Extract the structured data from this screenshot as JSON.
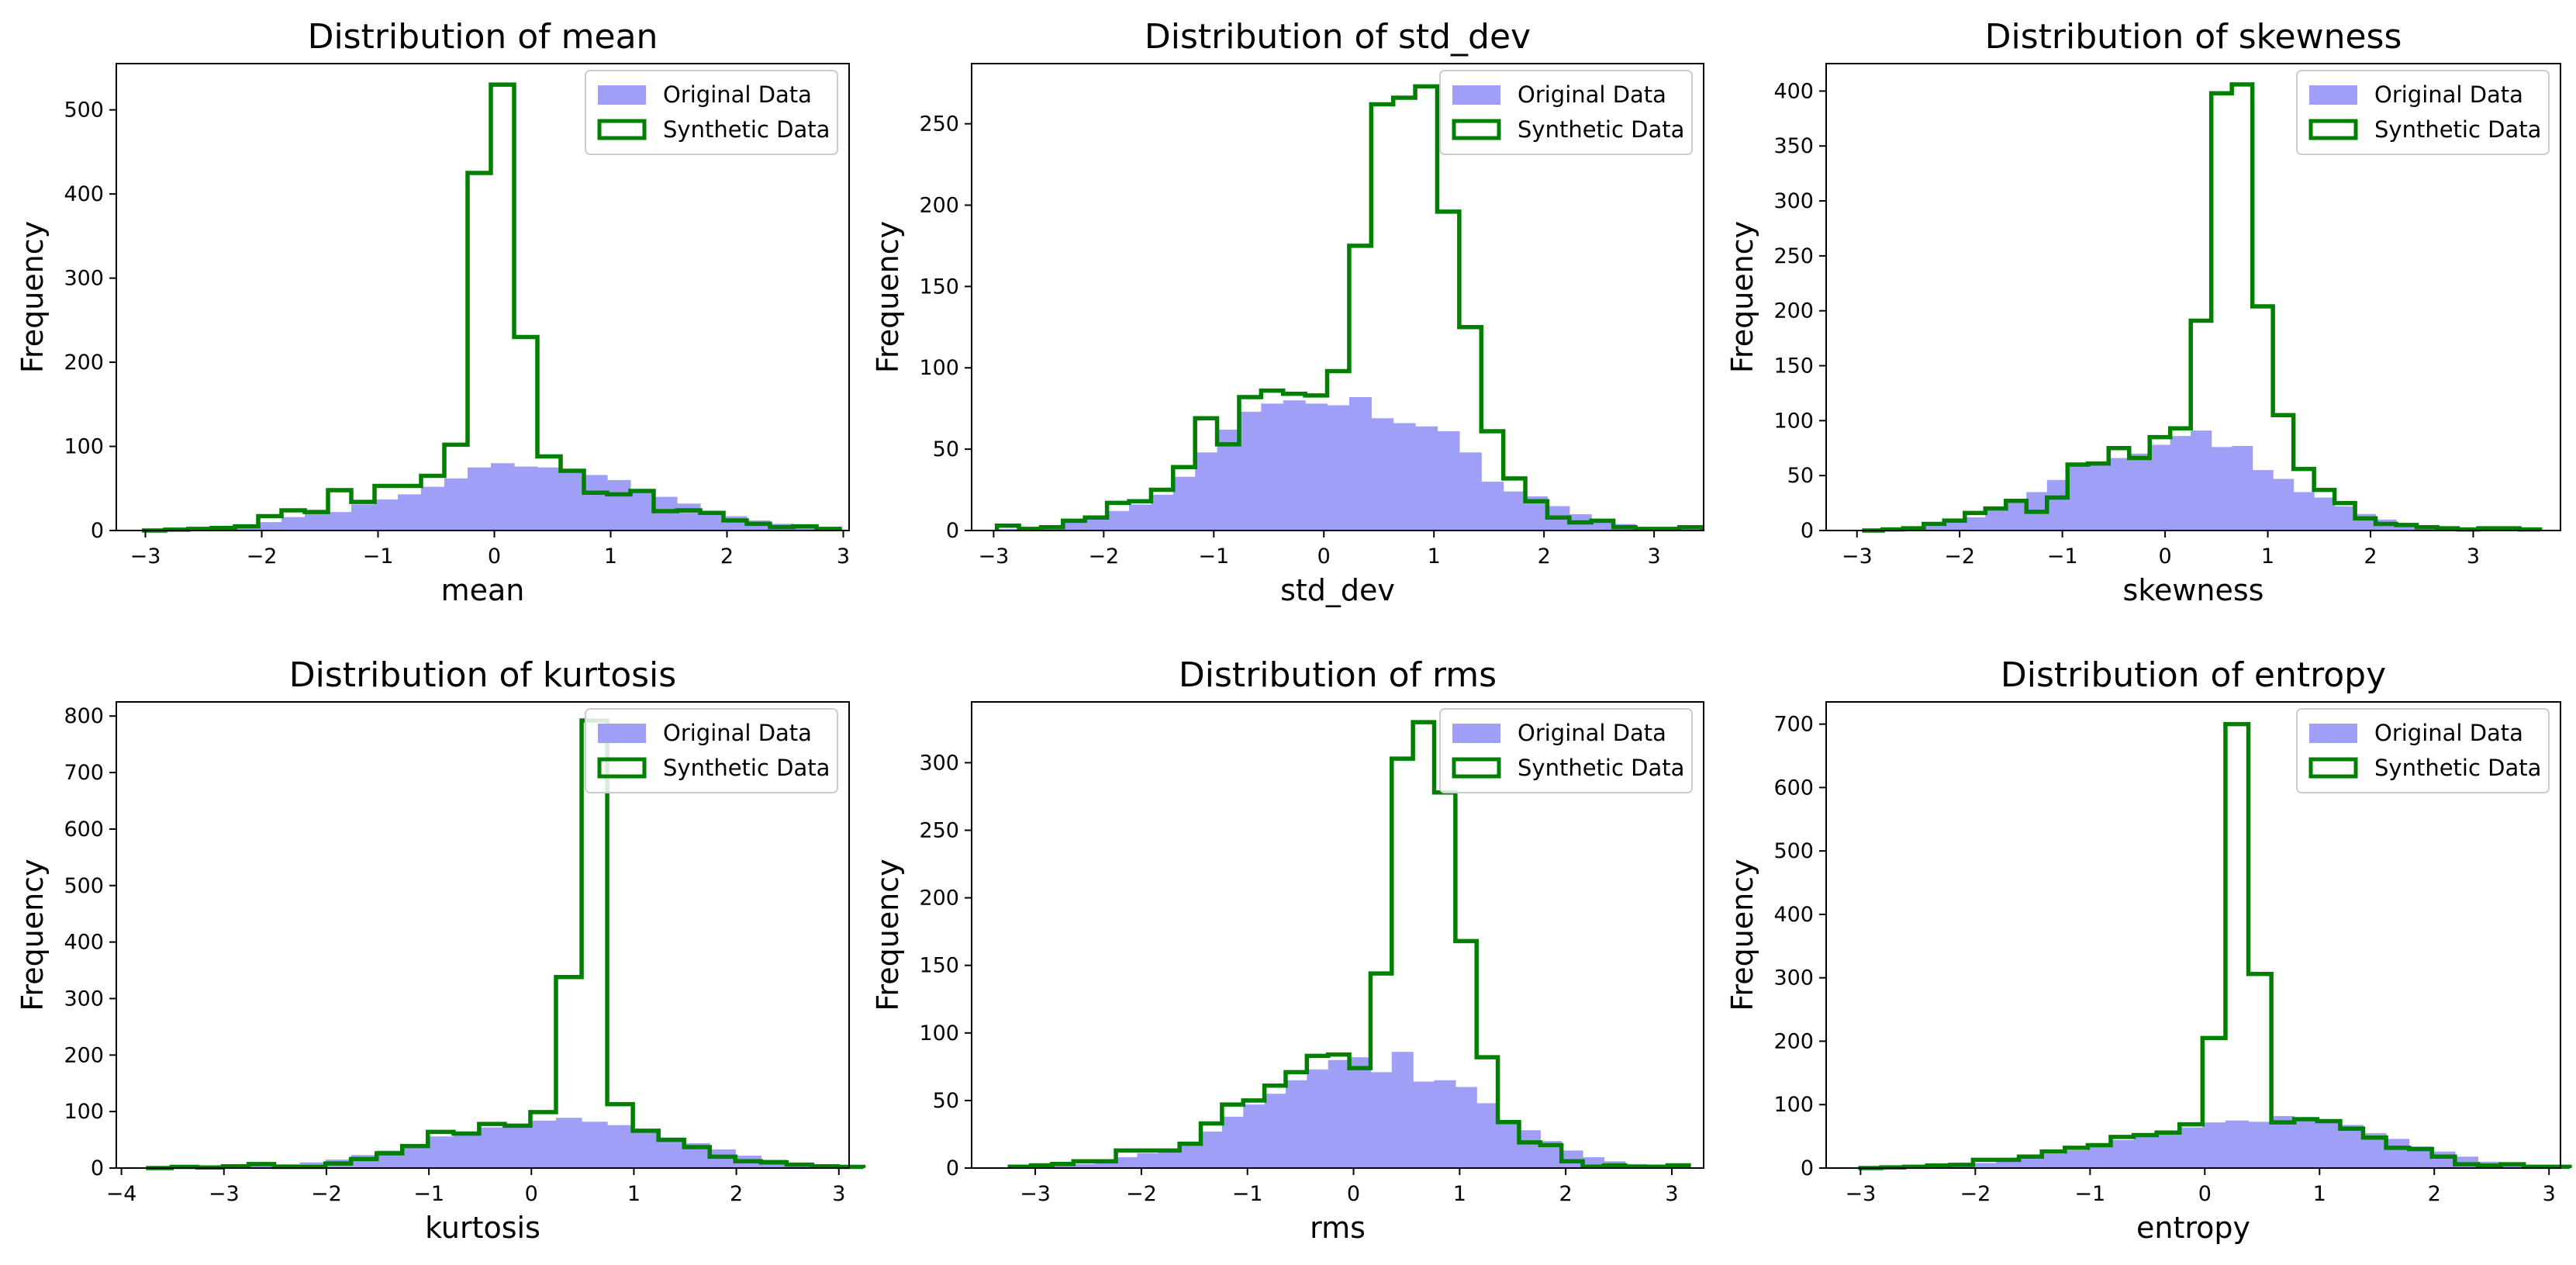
{
  "colors": {
    "original": "#9f9ff8",
    "synthetic": "#008000",
    "axis": "#000000",
    "background": "#ffffff"
  },
  "legend": {
    "original_label": "Original Data",
    "synthetic_label": "Synthetic Data",
    "placement": "upper right"
  },
  "chart_data": [
    {
      "type": "histogram",
      "title": "Distribution of mean",
      "xlabel": "mean",
      "ylabel": "Frequency",
      "xlim": [
        -3.25,
        3.05
      ],
      "ylim": [
        0,
        555
      ],
      "xticks": [
        -3,
        -2,
        -1,
        0,
        1,
        2,
        3
      ],
      "yticks": [
        0,
        100,
        200,
        300,
        400,
        500
      ],
      "bin_start": -3.03,
      "bin_width": 0.2,
      "original_counts": [
        0,
        1,
        2,
        3,
        5,
        10,
        16,
        20,
        22,
        31,
        37,
        43,
        52,
        62,
        75,
        80,
        76,
        75,
        70,
        66,
        60,
        49,
        40,
        32,
        23,
        17,
        12,
        8,
        5,
        2
      ],
      "synthetic_counts": [
        0,
        1,
        2,
        3,
        5,
        17,
        24,
        22,
        48,
        34,
        53,
        53,
        65,
        102,
        425,
        530,
        230,
        88,
        71,
        45,
        43,
        47,
        23,
        24,
        21,
        12,
        8,
        4,
        5,
        2
      ]
    },
    {
      "type": "histogram",
      "title": "Distribution of std_dev",
      "xlabel": "std_dev",
      "ylabel": "Frequency",
      "xlim": [
        -3.2,
        3.45
      ],
      "ylim": [
        0,
        287
      ],
      "xticks": [
        -3,
        -2,
        -1,
        0,
        1,
        2,
        3
      ],
      "yticks": [
        0,
        50,
        100,
        150,
        200,
        250
      ],
      "bin_start": -2.97,
      "bin_width": 0.2,
      "original_counts": [
        1,
        2,
        3,
        5,
        8,
        12,
        16,
        22,
        33,
        48,
        62,
        73,
        78,
        80,
        78,
        77,
        82,
        69,
        66,
        64,
        61,
        48,
        30,
        24,
        21,
        15,
        10,
        6,
        4,
        2,
        1,
        1
      ],
      "synthetic_counts": [
        3,
        1,
        2,
        6,
        8,
        17,
        18,
        25,
        39,
        69,
        53,
        82,
        86,
        84,
        83,
        98,
        175,
        262,
        266,
        273,
        196,
        125,
        61,
        32,
        18,
        8,
        5,
        6,
        2,
        1,
        1,
        2
      ]
    },
    {
      "type": "histogram",
      "title": "Distribution of skewness",
      "xlabel": "skewness",
      "ylabel": "Frequency",
      "xlim": [
        -3.3,
        3.85
      ],
      "ylim": [
        0,
        425
      ],
      "xticks": [
        -3,
        -2,
        -1,
        0,
        1,
        2,
        3
      ],
      "yticks": [
        0,
        50,
        100,
        150,
        200,
        250,
        300,
        350,
        400
      ],
      "bin_start": -2.95,
      "bin_width": 0.2,
      "original_counts": [
        0,
        1,
        2,
        4,
        8,
        12,
        18,
        25,
        35,
        46,
        60,
        62,
        66,
        70,
        78,
        86,
        91,
        76,
        77,
        55,
        47,
        35,
        30,
        22,
        15,
        10,
        6,
        4,
        3,
        2,
        1,
        1,
        1
      ],
      "synthetic_counts": [
        0,
        1,
        2,
        6,
        9,
        16,
        20,
        27,
        17,
        30,
        60,
        61,
        75,
        66,
        85,
        93,
        191,
        398,
        406,
        204,
        105,
        56,
        37,
        25,
        11,
        6,
        5,
        3,
        2,
        1,
        2,
        2,
        1
      ]
    },
    {
      "type": "histogram",
      "title": "Distribution of kurtosis",
      "xlabel": "kurtosis",
      "ylabel": "Frequency",
      "xlim": [
        -4.05,
        3.1
      ],
      "ylim": [
        0,
        825
      ],
      "xticks": [
        -4,
        -3,
        -2,
        -1,
        0,
        1,
        2,
        3
      ],
      "yticks": [
        0,
        100,
        200,
        300,
        400,
        500,
        600,
        700,
        800
      ],
      "bin_start": -3.76,
      "bin_width": 0.25,
      "original_counts": [
        0,
        1,
        2,
        3,
        5,
        7,
        10,
        15,
        23,
        31,
        42,
        56,
        62,
        72,
        78,
        84,
        89,
        82,
        76,
        68,
        54,
        44,
        33,
        22,
        15,
        9,
        5,
        2
      ],
      "synthetic_counts": [
        0,
        2,
        1,
        3,
        7,
        2,
        2,
        8,
        16,
        26,
        39,
        64,
        61,
        78,
        75,
        99,
        338,
        792,
        113,
        66,
        50,
        37,
        20,
        12,
        10,
        6,
        3,
        2
      ]
    },
    {
      "type": "histogram",
      "title": "Distribution of rms",
      "xlabel": "rms",
      "ylabel": "Frequency",
      "xlim": [
        -3.6,
        3.3
      ],
      "ylim": [
        0,
        345
      ],
      "xticks": [
        -3,
        -2,
        -1,
        0,
        1,
        2,
        3
      ],
      "yticks": [
        0,
        50,
        100,
        150,
        200,
        250,
        300
      ],
      "bin_start": -3.24,
      "bin_width": 0.2,
      "original_counts": [
        0,
        1,
        2,
        3,
        5,
        8,
        11,
        14,
        19,
        27,
        38,
        47,
        55,
        65,
        73,
        80,
        82,
        71,
        86,
        64,
        65,
        60,
        48,
        33,
        28,
        20,
        13,
        8,
        5,
        3,
        1,
        1
      ],
      "synthetic_counts": [
        1,
        2,
        3,
        5,
        5,
        13,
        13,
        13,
        18,
        33,
        47,
        50,
        61,
        71,
        83,
        84,
        74,
        144,
        303,
        330,
        278,
        168,
        82,
        34,
        19,
        17,
        5,
        1,
        2,
        1,
        1,
        2
      ]
    },
    {
      "type": "histogram",
      "title": "Distribution of entropy",
      "xlabel": "entropy",
      "ylabel": "Frequency",
      "xlim": [
        -3.3,
        3.1
      ],
      "ylim": [
        0,
        735
      ],
      "xticks": [
        -3,
        -2,
        -1,
        0,
        1,
        2,
        3
      ],
      "yticks": [
        0,
        100,
        200,
        300,
        400,
        500,
        600,
        700
      ],
      "bin_start": -3.02,
      "bin_width": 0.2,
      "original_counts": [
        0,
        1,
        2,
        3,
        5,
        8,
        12,
        16,
        22,
        28,
        35,
        44,
        52,
        58,
        64,
        72,
        75,
        73,
        82,
        75,
        72,
        68,
        55,
        46,
        34,
        26,
        18,
        10,
        6,
        3,
        2
      ],
      "synthetic_counts": [
        0,
        1,
        2,
        4,
        5,
        13,
        13,
        18,
        26,
        32,
        36,
        49,
        52,
        56,
        69,
        205,
        700,
        306,
        72,
        77,
        74,
        62,
        48,
        32,
        30,
        18,
        6,
        4,
        6,
        2,
        2
      ]
    }
  ]
}
